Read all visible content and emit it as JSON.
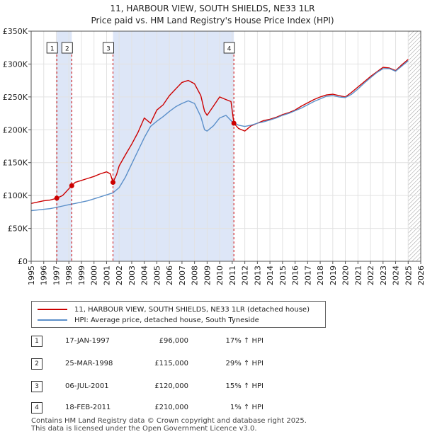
{
  "chart_data": {
    "type": "line",
    "title": "11, HARBOUR VIEW, SOUTH SHIELDS, NE33 1LR",
    "subtitle": "Price paid vs. HM Land Registry's House Price Index (HPI)",
    "xlim": [
      1995,
      2026
    ],
    "ylim": [
      0,
      350000
    ],
    "x_ticks": [
      "1995",
      "1996",
      "1997",
      "1998",
      "1999",
      "2000",
      "2001",
      "2002",
      "2003",
      "2004",
      "2005",
      "2006",
      "2007",
      "2008",
      "2009",
      "2010",
      "2011",
      "2012",
      "2013",
      "2014",
      "2015",
      "2016",
      "2017",
      "2018",
      "2019",
      "2020",
      "2021",
      "2022",
      "2023",
      "2024",
      "2025",
      "2026"
    ],
    "y_ticks": [
      {
        "value": 0,
        "label": "£0"
      },
      {
        "value": 50000,
        "label": "£50K"
      },
      {
        "value": 100000,
        "label": "£100K"
      },
      {
        "value": 150000,
        "label": "£150K"
      },
      {
        "value": 200000,
        "label": "£200K"
      },
      {
        "value": 250000,
        "label": "£250K"
      },
      {
        "value": 300000,
        "label": "£300K"
      },
      {
        "value": 350000,
        "label": "£350K"
      }
    ],
    "grid": true,
    "shaded_periods": [
      [
        1997.04,
        1998.23
      ],
      [
        2001.51,
        2011.13
      ]
    ],
    "hatched_after": 2025.0,
    "series": [
      {
        "name": "11, HARBOUR VIEW, SOUTH SHIELDS, NE33 1LR (detached house)",
        "color": "#cc0000",
        "x": [
          1995,
          1995.5,
          1996,
          1996.5,
          1997.04,
          1997.5,
          1998.23,
          1998.5,
          1999,
          1999.5,
          2000,
          2000.5,
          2001,
          2001.3,
          2001.51,
          2001.8,
          2002,
          2002.5,
          2003,
          2003.5,
          2004,
          2004.5,
          2005,
          2005.5,
          2006,
          2006.5,
          2007,
          2007.5,
          2008,
          2008.5,
          2008.8,
          2009,
          2009.5,
          2010,
          2010.5,
          2010.9,
          2011.13,
          2011.5,
          2012,
          2012.5,
          2013,
          2013.5,
          2014,
          2014.5,
          2015,
          2015.5,
          2016,
          2016.5,
          2017,
          2017.5,
          2018,
          2018.5,
          2019,
          2019.5,
          2020,
          2020.5,
          2021,
          2021.5,
          2022,
          2022.5,
          2023,
          2023.5,
          2024,
          2024.5,
          2025
        ],
        "values": [
          88000,
          90000,
          92000,
          93000,
          96000,
          100000,
          115000,
          120000,
          123000,
          126000,
          129000,
          133000,
          136000,
          133000,
          120000,
          132000,
          145000,
          162000,
          178000,
          196000,
          218000,
          210000,
          230000,
          238000,
          252000,
          262000,
          272000,
          275000,
          270000,
          252000,
          228000,
          222000,
          236000,
          250000,
          246000,
          243000,
          210000,
          202000,
          198000,
          206000,
          210000,
          214000,
          216000,
          219000,
          223000,
          226000,
          230000,
          236000,
          241000,
          246000,
          250000,
          253000,
          254000,
          252000,
          250000,
          257000,
          265000,
          273000,
          281000,
          288000,
          295000,
          294000,
          290000,
          299000,
          307000
        ]
      },
      {
        "name": "HPI: Average price, detached house, South Tyneside",
        "color": "#5b8fc9",
        "x": [
          1995,
          1995.5,
          1996,
          1996.5,
          1997,
          1997.5,
          1998,
          1998.5,
          1999,
          1999.5,
          2000,
          2000.5,
          2001,
          2001.5,
          2002,
          2002.5,
          2003,
          2003.5,
          2004,
          2004.5,
          2005,
          2005.5,
          2006,
          2006.5,
          2007,
          2007.5,
          2008,
          2008.5,
          2008.8,
          2009,
          2009.5,
          2010,
          2010.5,
          2011,
          2011.5,
          2012,
          2012.5,
          2013,
          2013.5,
          2014,
          2014.5,
          2015,
          2015.5,
          2016,
          2016.5,
          2017,
          2017.5,
          2018,
          2018.5,
          2019,
          2019.5,
          2020,
          2020.5,
          2021,
          2021.5,
          2022,
          2022.5,
          2023,
          2023.5,
          2024,
          2024.5,
          2025
        ],
        "values": [
          77000,
          78000,
          79000,
          80000,
          82000,
          84000,
          86000,
          88000,
          90000,
          92000,
          95000,
          98000,
          101000,
          104000,
          112000,
          128000,
          148000,
          168000,
          188000,
          205000,
          213000,
          220000,
          228000,
          235000,
          240000,
          244000,
          240000,
          220000,
          200000,
          198000,
          206000,
          218000,
          222000,
          212000,
          207000,
          205000,
          207000,
          210000,
          212000,
          215000,
          218000,
          222000,
          225000,
          229000,
          233000,
          238000,
          243000,
          247000,
          251000,
          252000,
          250000,
          249000,
          254000,
          262000,
          271000,
          279000,
          287000,
          293000,
          293000,
          289000,
          297000,
          305000
        ]
      }
    ],
    "sales": [
      {
        "id": "1",
        "date": "17-JAN-1997",
        "x": 1997.04,
        "value": 96000,
        "price": "£96,000",
        "hpi": "17% ↑ HPI"
      },
      {
        "id": "2",
        "date": "25-MAR-1998",
        "x": 1998.23,
        "value": 115000,
        "price": "£115,000",
        "hpi": "29% ↑ HPI"
      },
      {
        "id": "3",
        "date": "06-JUL-2001",
        "x": 2001.51,
        "value": 120000,
        "price": "£120,000",
        "hpi": "15% ↑ HPI"
      },
      {
        "id": "4",
        "date": "18-FEB-2011",
        "x": 2011.13,
        "value": 210000,
        "price": "£210,000",
        "hpi": "1% ↑ HPI"
      }
    ]
  },
  "footer": {
    "line1": "Contains HM Land Registry data © Crown copyright and database right 2025.",
    "line2": "This data is licensed under the Open Government Licence v3.0."
  }
}
